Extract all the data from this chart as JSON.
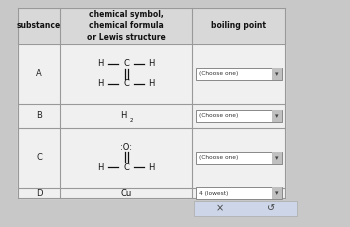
{
  "background_color": "#c8c8c8",
  "table_bg": "#f0f0f0",
  "header_bg": "#c8c8c8",
  "cell_bg": "#f0f0f0",
  "border_color": "#999999",
  "text_color": "#222222",
  "substances": [
    "A",
    "B",
    "C",
    "D"
  ],
  "header_col1": "substance",
  "header_col2": "chemical symbol,\nchemical formula\nor Lewis structure",
  "header_col3": "boiling point",
  "dropdown_labels": [
    "(Choose one)",
    "(Choose one)",
    "(Choose one)",
    "4 (lowest)"
  ],
  "button_bar_color": "#ccd6e8",
  "x_button": "×",
  "undo_symbol": "↺"
}
